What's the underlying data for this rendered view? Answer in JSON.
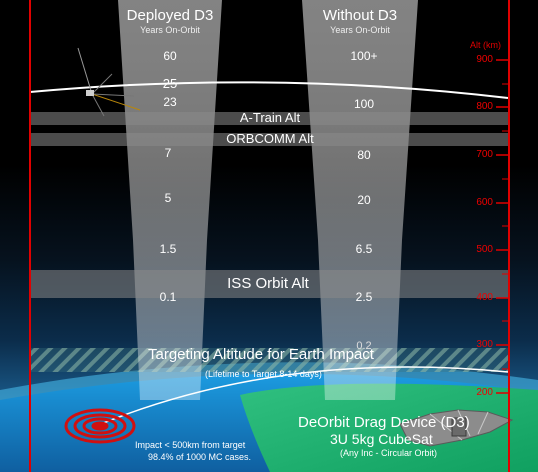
{
  "columns": {
    "deployed": {
      "title": "Deployed D3",
      "subtitle": "Years On-Orbit",
      "values": [
        "60",
        "25",
        "23",
        "7",
        "5",
        "1.5",
        "0.1"
      ]
    },
    "without": {
      "title": "Without D3",
      "subtitle": "Years On-Orbit",
      "values": [
        "100+",
        "100",
        "80",
        "20",
        "6.5",
        "2.5",
        "0.2"
      ]
    }
  },
  "bands": {
    "atrain": "A-Train Alt",
    "orbcomm": "ORBCOMM Alt",
    "iss": "ISS Orbit Alt",
    "target": "Targeting Altitude for Earth Impact",
    "target_note": "(Lifetime to Target 8-14 days)"
  },
  "axis": {
    "label": "Alt (km)",
    "ticks": [
      "900",
      "800",
      "700",
      "600",
      "500",
      "400",
      "300",
      "200"
    ]
  },
  "impact": {
    "line1": "Impact < 500km from target",
    "line2": "98.4% of 1000 MC cases."
  },
  "device": {
    "line1": "DeOrbit Drag Device (D3)",
    "line2": "3U 5kg CubeSat",
    "line3": "(Any Inc - Circular Orbit)"
  },
  "colors": {
    "axis_red": "#e00000",
    "impact_red": "#d01010",
    "land_green": "#20b070",
    "ocean_blue": "#1a8fd0"
  }
}
